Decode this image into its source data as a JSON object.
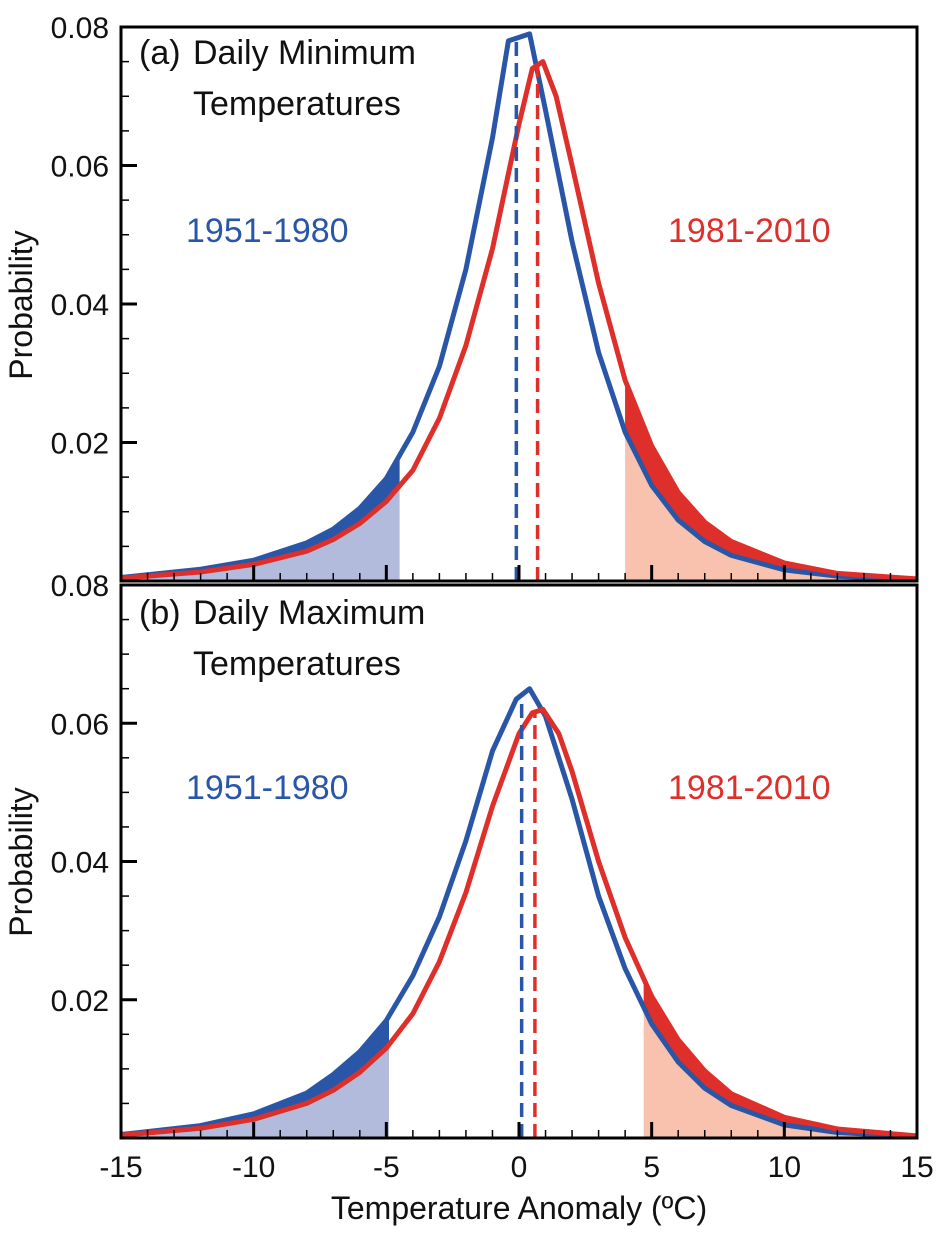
{
  "figure": {
    "xlabel": "Temperature Anomaly (ºC)",
    "x_tick_labels": [
      "-15",
      "-10",
      "-5",
      "0",
      "5",
      "10",
      "15"
    ],
    "colors": {
      "blue": "#2a56a8",
      "red": "#de2f2a",
      "blue_fill": "#b3bbdd",
      "red_fill": "#f8c2ae",
      "dark_blue_fill": "#2a56a8",
      "dark_red_fill": "#de2f2a"
    }
  },
  "chart_data": [
    {
      "type": "line",
      "panel_label": "(a)",
      "title_line1": "Daily Minimum",
      "title_line2": "Temperatures",
      "ylabel": "Probability",
      "xlim": [
        -15,
        15
      ],
      "ylim": [
        0,
        0.08
      ],
      "y_tick_labels": [
        "0.08",
        "0.06",
        "0.04",
        "0.02"
      ],
      "x_ticks": [
        -15,
        -10,
        -5,
        0,
        5,
        10,
        15
      ],
      "y_ticks": [
        0.08,
        0.06,
        0.04,
        0.02
      ],
      "series": [
        {
          "name": "1951-1980",
          "color": "#2a56a8",
          "mean": -0.1,
          "low_threshold": -4.5,
          "x": [
            -15,
            -12,
            -10,
            -8,
            -7,
            -6,
            -5,
            -4,
            -3,
            -2,
            -1,
            -0.4,
            0.4,
            1,
            2,
            3,
            4,
            5,
            6,
            7,
            8,
            10,
            12,
            15
          ],
          "y": [
            0.0005,
            0.0017,
            0.003,
            0.0055,
            0.0075,
            0.0105,
            0.0148,
            0.0215,
            0.031,
            0.045,
            0.064,
            0.078,
            0.079,
            0.068,
            0.049,
            0.033,
            0.0215,
            0.0138,
            0.0088,
            0.0057,
            0.0037,
            0.0016,
            0.0007,
            0.0002
          ]
        },
        {
          "name": "1981-2010",
          "color": "#de2f2a",
          "mean": 0.7,
          "high_threshold": 4.0,
          "x": [
            -15,
            -12,
            -10,
            -8,
            -7,
            -6,
            -5,
            -4,
            -3,
            -2,
            -1,
            0,
            0.5,
            0.9,
            1.4,
            2,
            3,
            4,
            5,
            6,
            7,
            8,
            10,
            12,
            15
          ],
          "y": [
            0.0004,
            0.0013,
            0.0024,
            0.0043,
            0.006,
            0.0083,
            0.0115,
            0.016,
            0.0235,
            0.034,
            0.048,
            0.066,
            0.074,
            0.075,
            0.07,
            0.06,
            0.043,
            0.029,
            0.0195,
            0.0128,
            0.0085,
            0.0057,
            0.0026,
            0.0011,
            0.0003
          ]
        }
      ]
    },
    {
      "type": "line",
      "panel_label": "(b)",
      "title_line1": "Daily Maximum",
      "title_line2": "Temperatures",
      "ylabel": "Probability",
      "xlim": [
        -15,
        15
      ],
      "ylim": [
        0,
        0.08
      ],
      "y_tick_labels": [
        "0.08",
        "0.06",
        "0.04",
        "0.02"
      ],
      "x_ticks": [
        -15,
        -10,
        -5,
        0,
        5,
        10,
        15
      ],
      "y_ticks": [
        0.08,
        0.06,
        0.04,
        0.02
      ],
      "series": [
        {
          "name": "1951-1980",
          "color": "#2a56a8",
          "mean": 0.1,
          "low_threshold": -4.9,
          "x": [
            -15,
            -12,
            -10,
            -8,
            -7,
            -6,
            -5,
            -4,
            -3,
            -2,
            -1,
            -0.1,
            0.4,
            1,
            2,
            3,
            4,
            5,
            6,
            7,
            8,
            10,
            12,
            15
          ],
          "y": [
            0.0005,
            0.0018,
            0.0035,
            0.0065,
            0.0092,
            0.0125,
            0.017,
            0.0235,
            0.032,
            0.043,
            0.056,
            0.0635,
            0.065,
            0.061,
            0.049,
            0.035,
            0.0245,
            0.0165,
            0.011,
            0.0072,
            0.0047,
            0.0019,
            0.0008,
            0.0002
          ]
        },
        {
          "name": "1981-2010",
          "color": "#de2f2a",
          "mean": 0.6,
          "high_threshold": 4.7,
          "x": [
            -15,
            -12,
            -10,
            -8,
            -7,
            -6,
            -5,
            -4,
            -3,
            -2,
            -1,
            0,
            0.5,
            0.9,
            1.5,
            2,
            3,
            4,
            5,
            6,
            7,
            8,
            10,
            12,
            15
          ],
          "y": [
            0.0004,
            0.0014,
            0.0027,
            0.005,
            0.0069,
            0.0095,
            0.013,
            0.018,
            0.0255,
            0.0355,
            0.048,
            0.0585,
            0.0615,
            0.062,
            0.0585,
            0.053,
            0.04,
            0.029,
            0.0205,
            0.0142,
            0.0097,
            0.0064,
            0.003,
            0.0013,
            0.0003
          ]
        }
      ]
    }
  ]
}
